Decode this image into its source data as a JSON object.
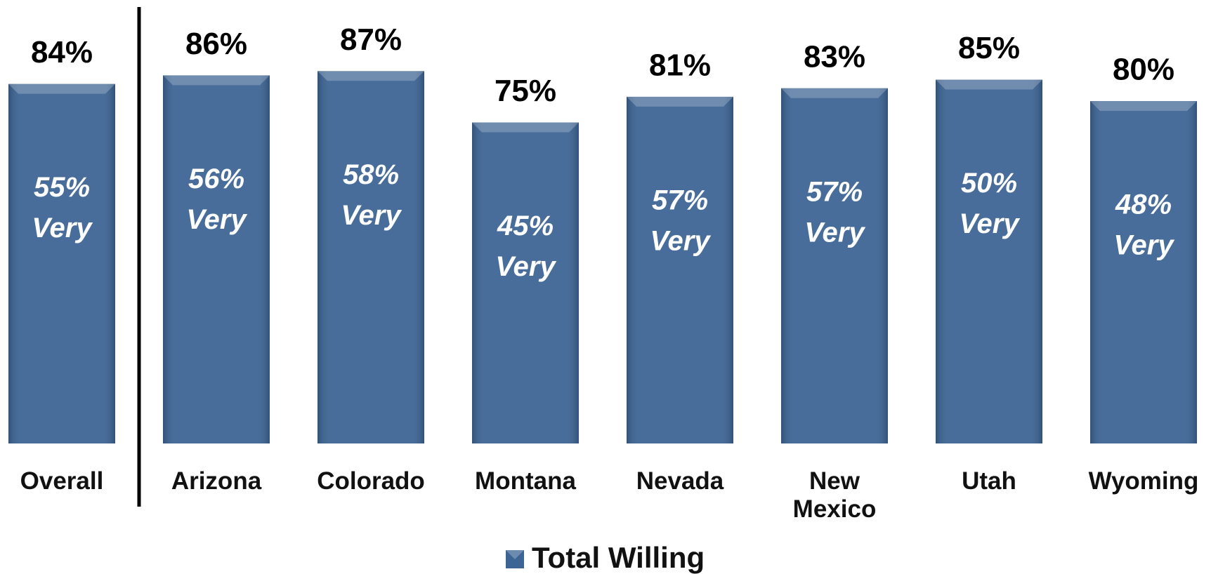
{
  "chart_data": {
    "type": "bar",
    "categories": [
      "Overall",
      "Arizona",
      "Colorado",
      "Montana",
      "Nevada",
      "New Mexico",
      "Utah",
      "Wyoming"
    ],
    "series": [
      {
        "name": "Total Willing",
        "color": "#3c6494",
        "values": [
          84,
          86,
          87,
          75,
          81,
          83,
          85,
          80
        ],
        "value_labels": [
          "84%",
          "86%",
          "87%",
          "75%",
          "81%",
          "83%",
          "85%",
          "80%"
        ]
      }
    ],
    "very_values": [
      55,
      56,
      58,
      45,
      57,
      57,
      50,
      48
    ],
    "very_value_labels": [
      "55%",
      "56%",
      "58%",
      "45%",
      "57%",
      "57%",
      "50%",
      "48%"
    ],
    "very_label": "Very",
    "legend": "bottom"
  }
}
